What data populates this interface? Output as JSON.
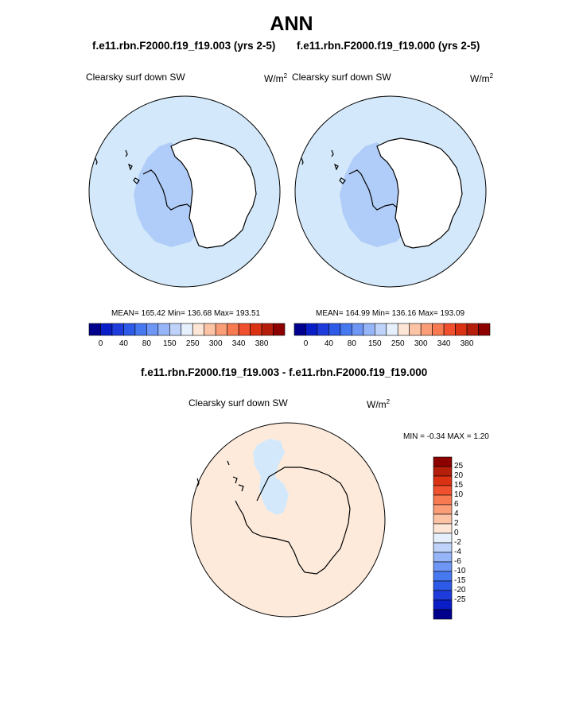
{
  "page": {
    "title": "ANN"
  },
  "panels": [
    {
      "case_title": "f.e11.rbn.F2000.f19_f19.003 (yrs 2-5)",
      "var_label": "Clearsky surf down SW",
      "units_base": "W/m",
      "units_exp": "2",
      "stats": "MEAN= 165.42  Min= 136.68  Max= 193.51",
      "fill_outer": "#d3e9fb",
      "fill_inner": "#b0ccf8"
    },
    {
      "case_title": "f.e11.rbn.F2000.f19_f19.000 (yrs 2-5)",
      "var_label": "Clearsky surf down SW",
      "units_base": "W/m",
      "units_exp": "2",
      "stats": "MEAN= 164.99  Min= 136.16  Max= 193.09",
      "fill_outer": "#d3e9fb",
      "fill_inner": "#b0ccf8"
    }
  ],
  "colorbar_top": {
    "colors": [
      "#00008c",
      "#0a1ec8",
      "#1e3cdc",
      "#2d5ae6",
      "#4678f0",
      "#6e96f5",
      "#96b4f8",
      "#bed2fa",
      "#e6f0fd",
      "#fde6d6",
      "#fcc3a5",
      "#fb9e78",
      "#f87a50",
      "#f0502d",
      "#dc3214",
      "#b41e0a",
      "#8c0000"
    ],
    "labels": [
      "0",
      "40",
      "80",
      "150",
      "250",
      "300",
      "340",
      "380"
    ]
  },
  "diff_panel": {
    "title": "f.e11.rbn.F2000.f19_f19.003 - f.e11.rbn.F2000.f19_f19.000",
    "var_label": "Clearsky surf down SW",
    "units_base": "W/m",
    "units_exp": "2",
    "minmax": "MIN =  -0.34 MAX =   1.20",
    "fill_outer": "#fdeadb",
    "fill_inner": "#d3e9fb"
  },
  "colorbar_diff": {
    "colors": [
      "#8c0000",
      "#b41e0a",
      "#dc3214",
      "#f0502d",
      "#f87a50",
      "#fb9e78",
      "#fcc3a5",
      "#fde6d6",
      "#e6f0fd",
      "#bed2fa",
      "#96b4f8",
      "#6e96f5",
      "#4678f0",
      "#2d5ae6",
      "#1e3cdc",
      "#0a1ec8",
      "#00008c"
    ],
    "labels": [
      "25",
      "20",
      "15",
      "10",
      "6",
      "4",
      "2",
      "0",
      "-2",
      "-4",
      "-6",
      "-10",
      "-15",
      "-20",
      "-25"
    ]
  },
  "chart_data": [
    {
      "type": "heatmap",
      "title": "f.e11.rbn.F2000.f19_f19.003 (yrs 2-5)",
      "variable": "Clearsky surf down SW",
      "units": "W/m2",
      "mean": 165.42,
      "min": 136.68,
      "max": 193.51,
      "contour_levels": [
        0,
        40,
        80,
        150,
        250,
        300,
        340,
        380
      ]
    },
    {
      "type": "heatmap",
      "title": "f.e11.rbn.F2000.f19_f19.000 (yrs 2-5)",
      "variable": "Clearsky surf down SW",
      "units": "W/m2",
      "mean": 164.99,
      "min": 136.16,
      "max": 193.09,
      "contour_levels": [
        0,
        40,
        80,
        150,
        250,
        300,
        340,
        380
      ]
    },
    {
      "type": "heatmap",
      "title": "f.e11.rbn.F2000.f19_f19.003 - f.e11.rbn.F2000.f19_f19.000",
      "variable": "Clearsky surf down SW",
      "units": "W/m2",
      "min": -0.34,
      "max": 1.2,
      "contour_levels": [
        25,
        20,
        15,
        10,
        6,
        4,
        2,
        0,
        -2,
        -4,
        -6,
        -10,
        -15,
        -20,
        -25
      ]
    }
  ]
}
